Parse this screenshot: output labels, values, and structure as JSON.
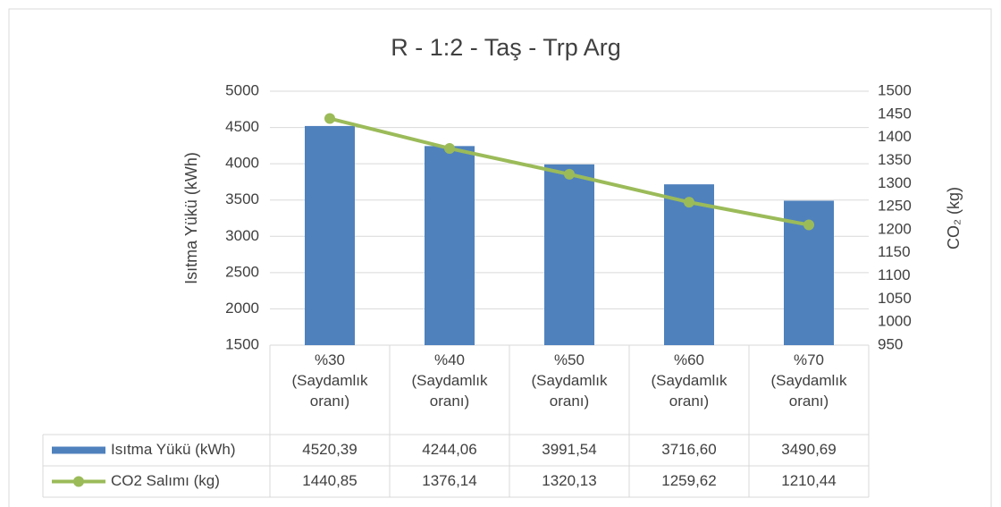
{
  "chart_data": {
    "type": "bar-line",
    "title": "R - 1:2 - Taş - Trp Arg",
    "y_label": "Isıtma Yükü (kWh)",
    "y2_label": "CO₂ (kg)",
    "categories": [
      "%30 (Saydamlık oranı)",
      "%40 (Saydamlık oranı)",
      "%50 (Saydamlık oranı)",
      "%60 (Saydamlık oranı)",
      "%70 (Saydamlık oranı)"
    ],
    "series": [
      {
        "name": "Isıtma Yükü (kWh)",
        "type": "bar",
        "color": "#4f81bd",
        "values": [
          4520.39,
          4244.06,
          3991.54,
          3716.6,
          3490.69
        ],
        "value_labels": [
          "4520,39",
          "4244,06",
          "3991,54",
          "3716,60",
          "3490,69"
        ]
      },
      {
        "name": "CO2 Salımı (kg)",
        "type": "line",
        "axis": "y2",
        "color": "#9bbb59",
        "values": [
          1440.85,
          1376.14,
          1320.13,
          1259.62,
          1210.44
        ],
        "value_labels": [
          "1440,85",
          "1376,14",
          "1320,13",
          "1259,62",
          "1210,44"
        ]
      }
    ],
    "ylim": [
      1500,
      5000
    ],
    "yticks": [
      1500,
      2000,
      2500,
      3000,
      3500,
      4000,
      4500,
      5000
    ],
    "y2lim": [
      950,
      1500
    ],
    "y2ticks": [
      950,
      1000,
      1050,
      1100,
      1150,
      1200,
      1250,
      1300,
      1350,
      1400,
      1450,
      1500
    ],
    "grid": true,
    "data_table": true
  }
}
